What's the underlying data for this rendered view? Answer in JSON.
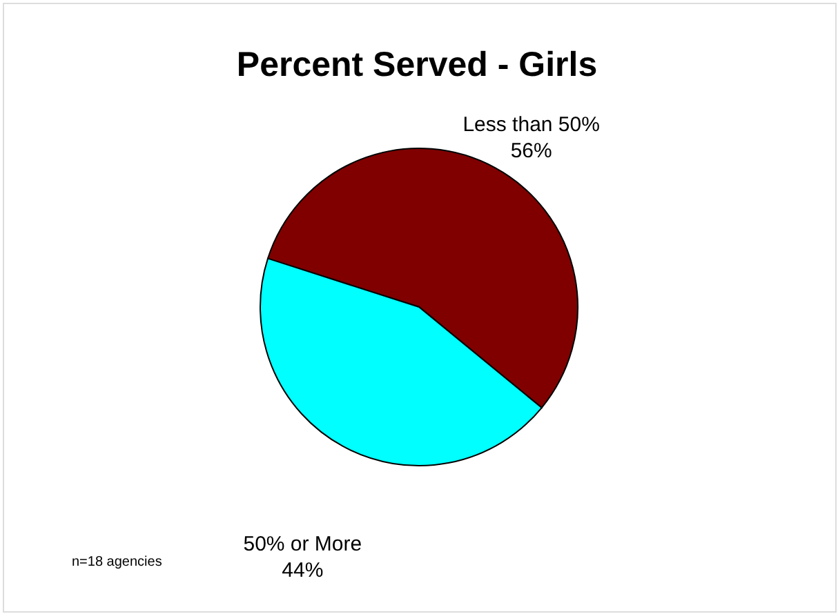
{
  "chart_data": {
    "type": "pie",
    "title": "Percent Served - Girls",
    "categories": [
      "Less than 50%",
      "50% or More"
    ],
    "values": [
      56,
      44
    ],
    "colors": [
      "#800000",
      "#00ffff"
    ],
    "value_labels": [
      "56%",
      "44%"
    ],
    "legend": false,
    "annotations": [
      "n=18 agencies"
    ]
  }
}
